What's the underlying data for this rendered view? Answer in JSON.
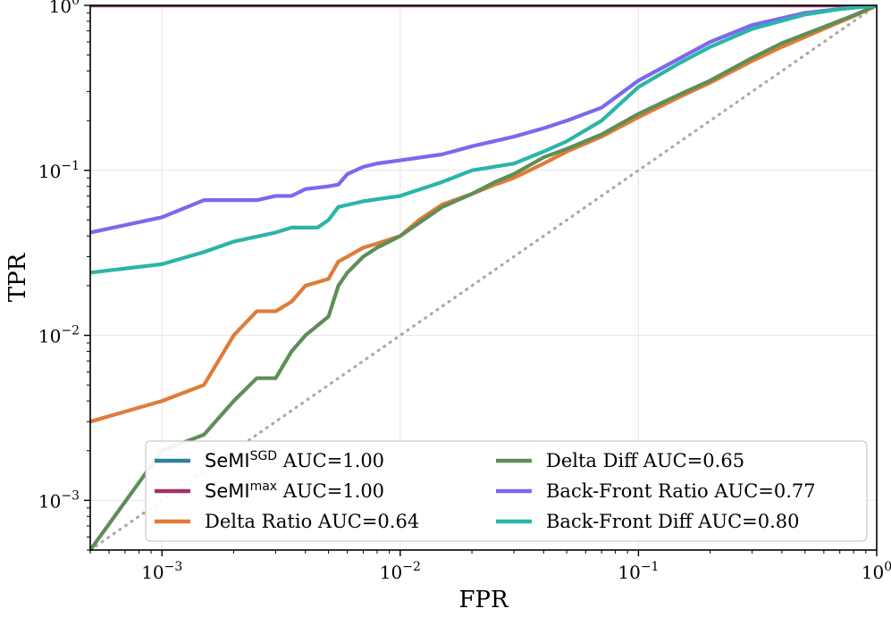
{
  "chart_data": {
    "type": "line",
    "title": "",
    "xlabel": "FPR",
    "ylabel": "TPR",
    "xscale": "log",
    "yscale": "log",
    "xlim": [
      0.0005,
      1.0
    ],
    "ylim": [
      0.0005,
      1.0
    ],
    "grid": true,
    "legend_position": "bottom-right",
    "legend_columns": 2,
    "x_ticks": [
      {
        "base": "10",
        "exp": "−3"
      },
      {
        "base": "10",
        "exp": "−2"
      },
      {
        "base": "10",
        "exp": "−1"
      },
      {
        "base": "10",
        "exp": "0"
      }
    ],
    "y_ticks": [
      {
        "base": "10",
        "exp": "−3"
      },
      {
        "base": "10",
        "exp": "−2"
      },
      {
        "base": "10",
        "exp": "−1"
      },
      {
        "base": "10",
        "exp": "0"
      }
    ],
    "diagonal": {
      "color": "#aaaaaa",
      "style": "dotted"
    },
    "series": [
      {
        "label_main": "SeMI",
        "label_sup": "SGD",
        "label_rest": " AUC=1.00",
        "color": "#2e7fa3",
        "points": [
          [
            0.0005,
            1.0
          ],
          [
            1.0,
            1.0
          ]
        ]
      },
      {
        "label_main": "SeMI",
        "label_sup": "max",
        "label_rest": " AUC=1.00",
        "color": "#a0336b",
        "points": [
          [
            0.0005,
            1.0
          ],
          [
            1.0,
            1.0
          ]
        ]
      },
      {
        "label_main": "Delta Ratio AUC=0.64",
        "label_sup": "",
        "label_rest": "",
        "color": "#e07b39",
        "points": [
          [
            0.0005,
            0.003
          ],
          [
            0.001,
            0.004
          ],
          [
            0.0015,
            0.005
          ],
          [
            0.002,
            0.01
          ],
          [
            0.0025,
            0.014
          ],
          [
            0.003,
            0.014
          ],
          [
            0.0035,
            0.016
          ],
          [
            0.004,
            0.02
          ],
          [
            0.0045,
            0.021
          ],
          [
            0.005,
            0.022
          ],
          [
            0.0055,
            0.028
          ],
          [
            0.006,
            0.03
          ],
          [
            0.007,
            0.034
          ],
          [
            0.008,
            0.036
          ],
          [
            0.01,
            0.04
          ],
          [
            0.012,
            0.05
          ],
          [
            0.015,
            0.062
          ],
          [
            0.02,
            0.072
          ],
          [
            0.025,
            0.082
          ],
          [
            0.03,
            0.09
          ],
          [
            0.04,
            0.11
          ],
          [
            0.05,
            0.13
          ],
          [
            0.07,
            0.16
          ],
          [
            0.1,
            0.21
          ],
          [
            0.15,
            0.28
          ],
          [
            0.2,
            0.34
          ],
          [
            0.3,
            0.46
          ],
          [
            0.4,
            0.56
          ],
          [
            0.6,
            0.72
          ],
          [
            0.8,
            0.86
          ],
          [
            1.0,
            1.0
          ]
        ]
      },
      {
        "label_main": "Delta Diff AUC=0.65",
        "label_sup": "",
        "label_rest": "",
        "color": "#5e8e57",
        "points": [
          [
            0.0005,
            0.0005
          ],
          [
            0.001,
            0.002
          ],
          [
            0.0015,
            0.0025
          ],
          [
            0.002,
            0.004
          ],
          [
            0.0025,
            0.0055
          ],
          [
            0.003,
            0.0055
          ],
          [
            0.0035,
            0.008
          ],
          [
            0.004,
            0.01
          ],
          [
            0.005,
            0.013
          ],
          [
            0.0055,
            0.02
          ],
          [
            0.006,
            0.024
          ],
          [
            0.007,
            0.03
          ],
          [
            0.008,
            0.034
          ],
          [
            0.01,
            0.04
          ],
          [
            0.012,
            0.048
          ],
          [
            0.015,
            0.06
          ],
          [
            0.02,
            0.072
          ],
          [
            0.025,
            0.085
          ],
          [
            0.03,
            0.095
          ],
          [
            0.04,
            0.12
          ],
          [
            0.05,
            0.135
          ],
          [
            0.07,
            0.165
          ],
          [
            0.1,
            0.22
          ],
          [
            0.15,
            0.29
          ],
          [
            0.2,
            0.35
          ],
          [
            0.3,
            0.48
          ],
          [
            0.4,
            0.59
          ],
          [
            0.6,
            0.74
          ],
          [
            0.8,
            0.87
          ],
          [
            1.0,
            1.0
          ]
        ]
      },
      {
        "label_main": "Back-Front Ratio AUC=0.77",
        "label_sup": "",
        "label_rest": "",
        "color": "#7b68ee",
        "points": [
          [
            0.0005,
            0.042
          ],
          [
            0.001,
            0.052
          ],
          [
            0.0015,
            0.066
          ],
          [
            0.0025,
            0.066
          ],
          [
            0.003,
            0.07
          ],
          [
            0.0035,
            0.07
          ],
          [
            0.004,
            0.077
          ],
          [
            0.005,
            0.08
          ],
          [
            0.0055,
            0.082
          ],
          [
            0.006,
            0.095
          ],
          [
            0.007,
            0.105
          ],
          [
            0.008,
            0.11
          ],
          [
            0.01,
            0.115
          ],
          [
            0.015,
            0.125
          ],
          [
            0.02,
            0.14
          ],
          [
            0.03,
            0.16
          ],
          [
            0.04,
            0.18
          ],
          [
            0.05,
            0.2
          ],
          [
            0.07,
            0.24
          ],
          [
            0.1,
            0.35
          ],
          [
            0.15,
            0.48
          ],
          [
            0.2,
            0.6
          ],
          [
            0.3,
            0.76
          ],
          [
            0.5,
            0.9
          ],
          [
            0.7,
            0.95
          ],
          [
            1.0,
            1.0
          ]
        ]
      },
      {
        "label_main": "Back-Front Diff AUC=0.80",
        "label_sup": "",
        "label_rest": "",
        "color": "#2bb5a8",
        "points": [
          [
            0.0005,
            0.024
          ],
          [
            0.001,
            0.027
          ],
          [
            0.0015,
            0.032
          ],
          [
            0.002,
            0.037
          ],
          [
            0.003,
            0.042
          ],
          [
            0.0035,
            0.045
          ],
          [
            0.0045,
            0.045
          ],
          [
            0.005,
            0.05
          ],
          [
            0.0055,
            0.06
          ],
          [
            0.007,
            0.065
          ],
          [
            0.01,
            0.07
          ],
          [
            0.015,
            0.085
          ],
          [
            0.02,
            0.1
          ],
          [
            0.03,
            0.11
          ],
          [
            0.04,
            0.13
          ],
          [
            0.05,
            0.15
          ],
          [
            0.07,
            0.2
          ],
          [
            0.1,
            0.32
          ],
          [
            0.15,
            0.45
          ],
          [
            0.2,
            0.56
          ],
          [
            0.3,
            0.72
          ],
          [
            0.5,
            0.88
          ],
          [
            0.7,
            0.95
          ],
          [
            1.0,
            1.0
          ]
        ]
      }
    ]
  }
}
